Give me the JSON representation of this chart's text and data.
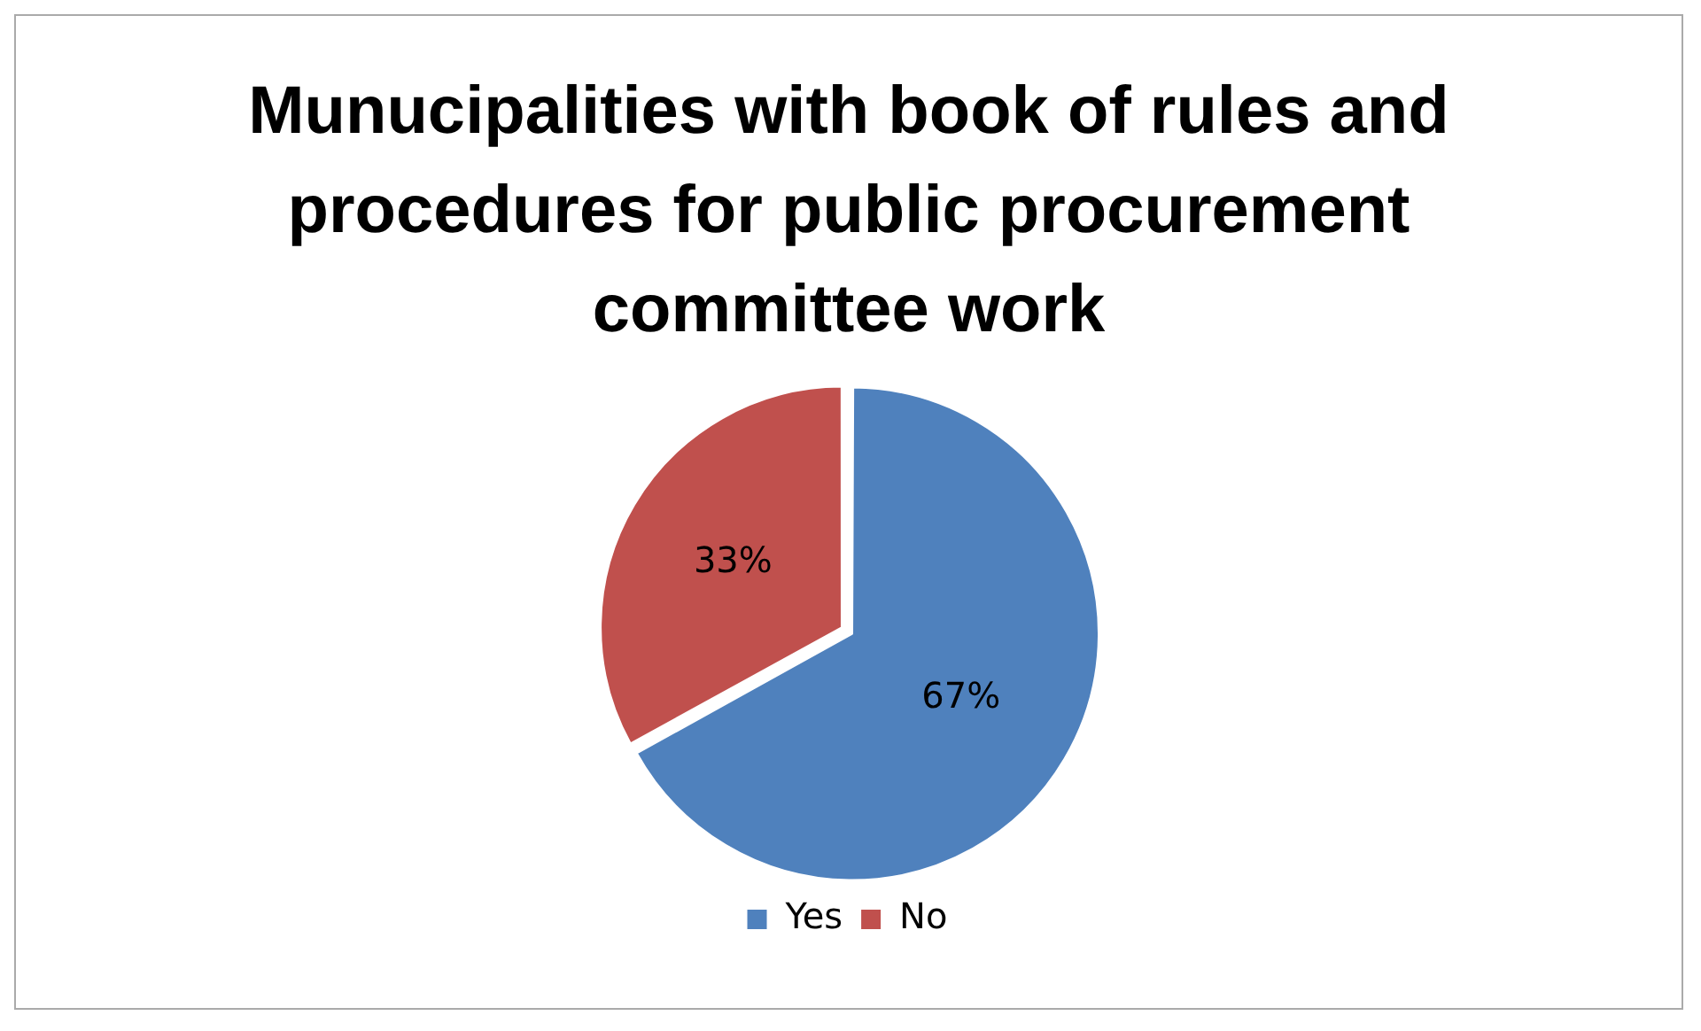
{
  "chart_data": {
    "type": "pie",
    "title": "Munucipalities with book of rules and procedures for public procurement committee work",
    "categories": [
      "Yes",
      "No"
    ],
    "values": [
      67,
      33
    ],
    "colors": [
      "#4f81bd",
      "#c0504d"
    ],
    "value_labels": [
      "67%",
      "33%"
    ],
    "legend": "bottom"
  }
}
